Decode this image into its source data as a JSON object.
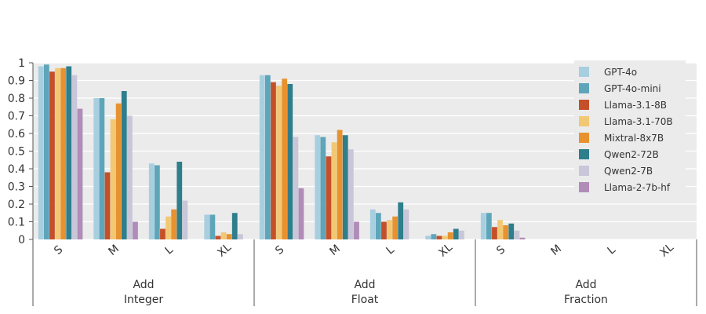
{
  "chart_data": {
    "type": "bar",
    "groups": [
      {
        "line1": "Add",
        "line2": "Integer",
        "categories": [
          "S",
          "M",
          "L",
          "XL"
        ]
      },
      {
        "line1": "Add",
        "line2": "Float",
        "categories": [
          "S",
          "M",
          "L",
          "XL"
        ]
      },
      {
        "line1": "Add",
        "line2": "Fraction",
        "categories": [
          "S",
          "M",
          "L",
          "XL"
        ]
      }
    ],
    "yticks": [
      "0",
      "0.1",
      "0.2",
      "0.3",
      "0.4",
      "0.5",
      "0.6",
      "0.7",
      "0.8",
      "0.9",
      "1"
    ],
    "ylim": [
      0,
      1
    ],
    "grid": true,
    "legend_position": "top-right",
    "series": [
      {
        "name": "GPT-4o",
        "color": "#a8cfe0",
        "values": [
          0.98,
          0.8,
          0.43,
          0.14,
          0.93,
          0.59,
          0.17,
          0.02,
          0.15,
          0,
          0,
          0
        ]
      },
      {
        "name": "GPT-4o-mini",
        "color": "#5ea5ba",
        "values": [
          0.99,
          0.8,
          0.42,
          0.14,
          0.93,
          0.58,
          0.15,
          0.03,
          0.15,
          0,
          0,
          0
        ]
      },
      {
        "name": "Llama-3.1-8B",
        "color": "#c4502a",
        "values": [
          0.95,
          0.38,
          0.06,
          0.02,
          0.89,
          0.47,
          0.1,
          0.02,
          0.07,
          0,
          0,
          0
        ]
      },
      {
        "name": "Llama-3.1-70B",
        "color": "#f2c874",
        "values": [
          0.97,
          0.68,
          0.13,
          0.04,
          0.87,
          0.55,
          0.11,
          0.02,
          0.11,
          0,
          0,
          0
        ]
      },
      {
        "name": "Mixtral-8x7B",
        "color": "#e8922f",
        "values": [
          0.97,
          0.77,
          0.17,
          0.03,
          0.91,
          0.62,
          0.13,
          0.04,
          0.08,
          0,
          0,
          0
        ]
      },
      {
        "name": "Qwen2-72B",
        "color": "#2e7e8c",
        "values": [
          0.98,
          0.84,
          0.44,
          0.15,
          0.88,
          0.59,
          0.21,
          0.06,
          0.09,
          0,
          0,
          0
        ]
      },
      {
        "name": "Qwen2-7B",
        "color": "#c8c6d8",
        "values": [
          0.93,
          0.7,
          0.22,
          0.03,
          0.58,
          0.51,
          0.17,
          0.05,
          0.05,
          0,
          0,
          0
        ]
      },
      {
        "name": "Llama-2-7b-hf",
        "color": "#b08cb8",
        "values": [
          0.74,
          0.1,
          0,
          0,
          0.29,
          0.1,
          0,
          0,
          0.01,
          0,
          0,
          0
        ]
      }
    ]
  }
}
